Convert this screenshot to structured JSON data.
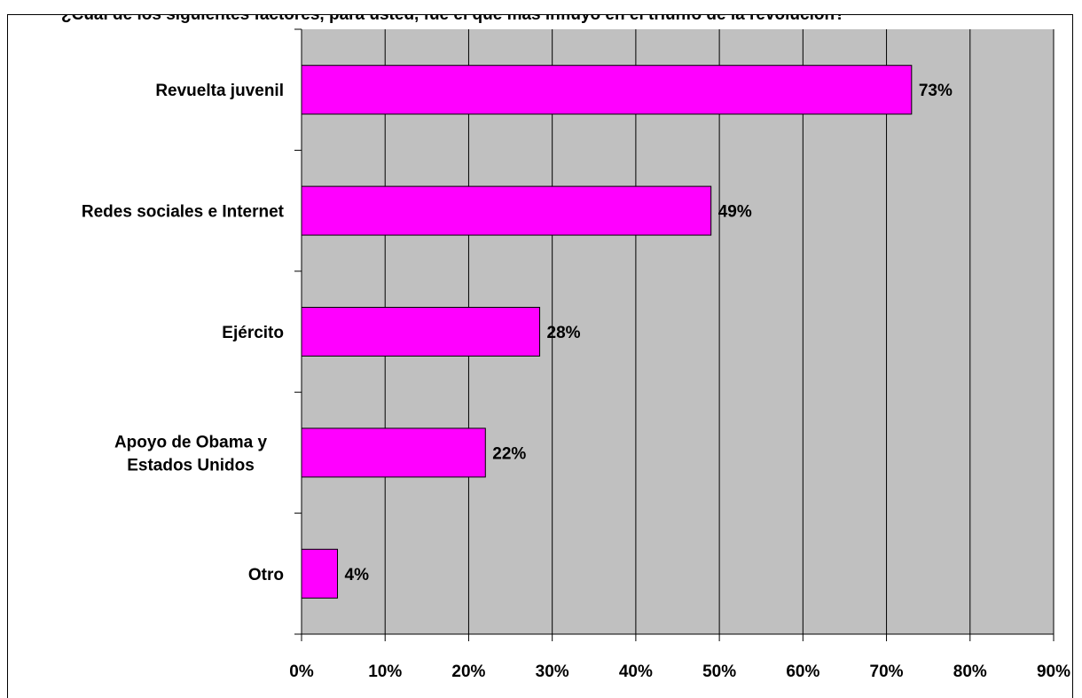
{
  "title_fragment": "¿Cuál de los siguientes factores, para usted, fue el que más influyó en el triunfo de la revolución?",
  "colors": {
    "plot_background": "#c0c0c0",
    "bar_fill": "#ff00ff",
    "gridline": "#000000"
  },
  "chart_data": {
    "type": "bar",
    "orientation": "horizontal",
    "categories": [
      "Revuelta juvenil",
      "Redes sociales e Internet",
      "Ejército",
      "Apoyo de Obama y Estados Unidos",
      "Otro"
    ],
    "category_lines": [
      [
        "Revuelta juvenil"
      ],
      [
        "Redes sociales e Internet"
      ],
      [
        "Ejército"
      ],
      [
        "Apoyo de Obama y",
        "Estados Unidos"
      ],
      [
        "Otro"
      ]
    ],
    "values": [
      73,
      49,
      28.5,
      22,
      4.3
    ],
    "data_labels": [
      "73%",
      "49%",
      "28%",
      "22%",
      "4%"
    ],
    "xlim": [
      0,
      90
    ],
    "xticks": [
      0,
      10,
      20,
      30,
      40,
      50,
      60,
      70,
      80,
      90
    ],
    "xtick_labels": [
      "0%",
      "10%",
      "20%",
      "30%",
      "40%",
      "50%",
      "60%",
      "70%",
      "80%",
      "90%"
    ],
    "grid": true,
    "xlabel": "",
    "ylabel": ""
  }
}
